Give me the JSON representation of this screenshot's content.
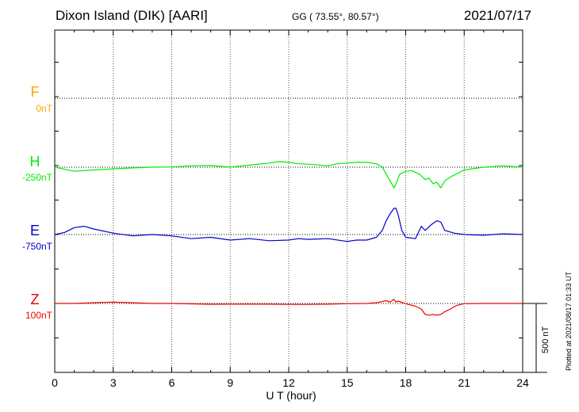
{
  "header": {
    "station": "Dixon Island (DIK)  [AARI]",
    "coords": "GG ( 73.55°,  80.57°)",
    "date": "2021/07/17"
  },
  "plotted_text": "Plotted at 2021/08/17 01:33 UT",
  "scale_text": "500 nT",
  "colors": {
    "F": "#ffa500",
    "H": "#00ee00",
    "E": "#0000cc",
    "Z": "#ee0000"
  },
  "components": [
    {
      "key": "F",
      "label": "F",
      "baseline_text": "0nT"
    },
    {
      "key": "H",
      "label": "H",
      "baseline_text": "-250nT"
    },
    {
      "key": "E",
      "label": "E",
      "baseline_text": "-750nT"
    },
    {
      "key": "Z",
      "label": "Z",
      "baseline_text": "100nT"
    }
  ],
  "chart_data": {
    "type": "line",
    "xlabel": "U T (hour)",
    "xlim": [
      0,
      24
    ],
    "x_ticks": [
      "0",
      "3",
      "6",
      "9",
      "12",
      "15",
      "18",
      "21",
      "24"
    ],
    "scale_nT": 500,
    "grid": true,
    "series": [
      {
        "name": "F",
        "baseline_nT": 0,
        "x": [],
        "y": []
      },
      {
        "name": "H",
        "baseline_nT": -250,
        "x": [
          0,
          0.5,
          1,
          1.5,
          2,
          3,
          4,
          5,
          6,
          7,
          8,
          9,
          10,
          11,
          11.5,
          12,
          12.5,
          13,
          14,
          14.5,
          15,
          15.5,
          16,
          16.5,
          16.8,
          17,
          17.2,
          17.4,
          17.5,
          17.7,
          18,
          18.3,
          18.7,
          19,
          19.2,
          19.4,
          19.6,
          19.8,
          20,
          20.3,
          20.6,
          21,
          22,
          23,
          24
        ],
        "y": [
          -250,
          -265,
          -280,
          -275,
          -270,
          -262,
          -255,
          -250,
          -248,
          -240,
          -238,
          -250,
          -235,
          -220,
          -210,
          -215,
          -225,
          -228,
          -240,
          -225,
          -220,
          -215,
          -215,
          -225,
          -250,
          -300,
          -350,
          -400,
          -370,
          -300,
          -280,
          -275,
          -300,
          -340,
          -330,
          -370,
          -360,
          -400,
          -350,
          -320,
          -300,
          -270,
          -250,
          -240,
          -250
        ]
      },
      {
        "name": "E",
        "baseline_nT": -750,
        "x": [
          0,
          0.5,
          1,
          1.5,
          2,
          3,
          4,
          5,
          6,
          7,
          8,
          9,
          10,
          11,
          12,
          12.5,
          13,
          14,
          15,
          15.5,
          16,
          16.5,
          16.8,
          17,
          17.2,
          17.4,
          17.5,
          17.6,
          17.8,
          18,
          18.5,
          18.8,
          19,
          19.3,
          19.6,
          19.8,
          20,
          20.5,
          21,
          22,
          23,
          24
        ],
        "y": [
          -750,
          -735,
          -700,
          -690,
          -710,
          -740,
          -760,
          -750,
          -760,
          -780,
          -770,
          -790,
          -780,
          -795,
          -790,
          -780,
          -785,
          -780,
          -800,
          -790,
          -790,
          -770,
          -720,
          -650,
          -600,
          -560,
          -560,
          -600,
          -720,
          -770,
          -780,
          -690,
          -720,
          -680,
          -650,
          -660,
          -720,
          -740,
          -750,
          -755,
          -745,
          -750
        ]
      },
      {
        "name": "Z",
        "baseline_nT": 100,
        "x": [
          0,
          1,
          2,
          3,
          4,
          5,
          6,
          7,
          8,
          9,
          10,
          11,
          12,
          13,
          14,
          15,
          16,
          16.5,
          17,
          17.2,
          17.4,
          17.5,
          17.6,
          18,
          18.5,
          18.8,
          19,
          19.2,
          19.4,
          19.6,
          19.8,
          20,
          20.3,
          20.6,
          21,
          22,
          23,
          24
        ],
        "y": [
          100,
          100,
          105,
          110,
          105,
          100,
          100,
          97,
          94,
          95,
          95,
          95,
          93,
          93,
          95,
          98,
          100,
          105,
          120,
          110,
          130,
          110,
          118,
          98,
          80,
          60,
          20,
          15,
          20,
          15,
          20,
          40,
          60,
          85,
          98,
          100,
          100,
          100
        ]
      }
    ]
  }
}
